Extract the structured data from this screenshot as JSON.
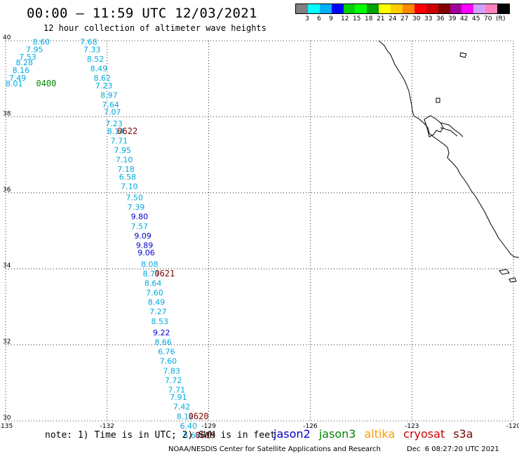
{
  "title": "00:00 – 11:59 UTC 12/03/2021",
  "subtitle": "12 hour collection of altimeter wave heights",
  "colorbar": {
    "colors": [
      "#808080",
      "#00ffff",
      "#00b0ff",
      "#0000ff",
      "#00d000",
      "#00ff00",
      "#00a000",
      "#ffff00",
      "#ffcc00",
      "#ff8800",
      "#ff0000",
      "#cc0000",
      "#800000",
      "#a000a0",
      "#ff00ff",
      "#d0a0ff",
      "#ff80c0",
      "#000000"
    ],
    "labels": [
      "3",
      "6",
      "9",
      "12",
      "15",
      "18",
      "21",
      "24",
      "27",
      "30",
      "33",
      "36",
      "39",
      "42",
      "45",
      "70",
      "(ft)"
    ]
  },
  "chart_data": {
    "type": "scatter",
    "lon_ticks": [
      "-135",
      "-132",
      "-129",
      "-126",
      "-123",
      "-120"
    ],
    "lat_ticks": [
      "30",
      "32",
      "34",
      "36",
      "38",
      "40"
    ],
    "xlim": [
      -135,
      -120
    ],
    "ylim": [
      30,
      40
    ],
    "grid": true,
    "points": [
      {
        "lon": -134.2,
        "lat": 39.9,
        "v": "8.60",
        "c": "#00aadd"
      },
      {
        "lon": -134.4,
        "lat": 39.7,
        "v": "7.95",
        "c": "#00aadd"
      },
      {
        "lon": -134.6,
        "lat": 39.5,
        "v": "7.53",
        "c": "#00aadd"
      },
      {
        "lon": -134.7,
        "lat": 39.35,
        "v": "8.28",
        "c": "#00aadd"
      },
      {
        "lon": -134.8,
        "lat": 39.15,
        "v": "8.16",
        "c": "#00aadd"
      },
      {
        "lon": -134.9,
        "lat": 38.95,
        "v": "7.49",
        "c": "#00aadd"
      },
      {
        "lon": -135.0,
        "lat": 38.8,
        "v": "8.01",
        "c": "#00aadd"
      },
      {
        "lon": -132.8,
        "lat": 39.9,
        "v": "7.68",
        "c": "#00aadd"
      },
      {
        "lon": -132.7,
        "lat": 39.7,
        "v": "7.33",
        "c": "#00aadd"
      },
      {
        "lon": -132.6,
        "lat": 39.45,
        "v": "8.52",
        "c": "#00aadd"
      },
      {
        "lon": -132.5,
        "lat": 39.2,
        "v": "8.49",
        "c": "#00aadd"
      },
      {
        "lon": -132.4,
        "lat": 38.95,
        "v": "8.62",
        "c": "#00aadd"
      },
      {
        "lon": -132.35,
        "lat": 38.75,
        "v": "7.23",
        "c": "#00aadd"
      },
      {
        "lon": -132.2,
        "lat": 38.5,
        "v": "8.97",
        "c": "#00aadd"
      },
      {
        "lon": -132.15,
        "lat": 38.25,
        "v": "7.64",
        "c": "#00aadd"
      },
      {
        "lon": -132.1,
        "lat": 38.05,
        "v": "7.07",
        "c": "#00aadd"
      },
      {
        "lon": -132.05,
        "lat": 37.75,
        "v": "7.23",
        "c": "#00aadd"
      },
      {
        "lon": -132.0,
        "lat": 37.55,
        "v": "8.14",
        "c": "#00aadd"
      },
      {
        "lon": -131.9,
        "lat": 37.3,
        "v": "7.71",
        "c": "#00aadd"
      },
      {
        "lon": -131.8,
        "lat": 37.05,
        "v": "7.95",
        "c": "#00aadd"
      },
      {
        "lon": -131.75,
        "lat": 36.8,
        "v": "7.10",
        "c": "#00aadd"
      },
      {
        "lon": -131.7,
        "lat": 36.55,
        "v": "7.18",
        "c": "#00aadd"
      },
      {
        "lon": -131.65,
        "lat": 36.35,
        "v": "6.58",
        "c": "#00aadd"
      },
      {
        "lon": -131.6,
        "lat": 36.1,
        "v": "7.10",
        "c": "#00aadd"
      },
      {
        "lon": -131.45,
        "lat": 35.8,
        "v": "7.50",
        "c": "#00aadd"
      },
      {
        "lon": -131.4,
        "lat": 35.55,
        "v": "7.39",
        "c": "#00aadd"
      },
      {
        "lon": -131.3,
        "lat": 35.3,
        "v": "9.80",
        "c": "#0000cc"
      },
      {
        "lon": -131.3,
        "lat": 35.05,
        "v": "7.57",
        "c": "#00aadd"
      },
      {
        "lon": -131.2,
        "lat": 34.8,
        "v": "9.09",
        "c": "#0000cc"
      },
      {
        "lon": -131.15,
        "lat": 34.55,
        "v": "9.89",
        "c": "#0000cc"
      },
      {
        "lon": -131.1,
        "lat": 34.35,
        "v": "9.06",
        "c": "#0000cc"
      },
      {
        "lon": -131.0,
        "lat": 34.05,
        "v": "8.08",
        "c": "#00aadd"
      },
      {
        "lon": -130.95,
        "lat": 33.8,
        "v": "8.77",
        "c": "#00aadd"
      },
      {
        "lon": -130.9,
        "lat": 33.55,
        "v": "8.64",
        "c": "#00aadd"
      },
      {
        "lon": -130.85,
        "lat": 33.3,
        "v": "7.60",
        "c": "#00aadd"
      },
      {
        "lon": -130.8,
        "lat": 33.05,
        "v": "8.49",
        "c": "#00aadd"
      },
      {
        "lon": -130.75,
        "lat": 32.8,
        "v": "7.27",
        "c": "#00aadd"
      },
      {
        "lon": -130.7,
        "lat": 32.55,
        "v": "8.53",
        "c": "#00aadd"
      },
      {
        "lon": -130.65,
        "lat": 32.25,
        "v": "9.22",
        "c": "#0000cc"
      },
      {
        "lon": -130.6,
        "lat": 32.0,
        "v": "8.66",
        "c": "#00aadd"
      },
      {
        "lon": -130.5,
        "lat": 31.75,
        "v": "6.76",
        "c": "#00aadd"
      },
      {
        "lon": -130.45,
        "lat": 31.5,
        "v": "7.60",
        "c": "#00aadd"
      },
      {
        "lon": -130.35,
        "lat": 31.25,
        "v": "7.83",
        "c": "#00aadd"
      },
      {
        "lon": -130.3,
        "lat": 31.0,
        "v": "7.72",
        "c": "#00aadd"
      },
      {
        "lon": -130.2,
        "lat": 30.75,
        "v": "7.71",
        "c": "#00aadd"
      },
      {
        "lon": -130.15,
        "lat": 30.55,
        "v": "7.91",
        "c": "#00aadd"
      },
      {
        "lon": -130.05,
        "lat": 30.3,
        "v": "7.42",
        "c": "#00aadd"
      },
      {
        "lon": -129.95,
        "lat": 30.05,
        "v": "8.12",
        "c": "#00aadd"
      },
      {
        "lon": -129.85,
        "lat": 29.8,
        "v": "6.40",
        "c": "#00aadd"
      },
      {
        "lon": -129.75,
        "lat": 29.55,
        "v": "5.67",
        "c": "#00aadd"
      }
    ],
    "time_labels": [
      {
        "lon": -134.1,
        "lat": 38.8,
        "t": "0400",
        "c": "#008800"
      },
      {
        "lon": -131.7,
        "lat": 37.55,
        "t": "0622",
        "c": "#800000"
      },
      {
        "lon": -130.6,
        "lat": 33.8,
        "t": "0621",
        "c": "#800000"
      },
      {
        "lon": -129.6,
        "lat": 30.05,
        "t": "0620",
        "c": "#800000"
      },
      {
        "lon": -129.4,
        "lat": 29.55,
        "t": "0619",
        "c": "#800000"
      }
    ]
  },
  "note": "note: 1) Time is in UTC; 2) SWH is in feet",
  "satellites": [
    {
      "name": "jason2",
      "color": "#0000cc"
    },
    {
      "name": "jason3",
      "color": "#008800"
    },
    {
      "name": "altika",
      "color": "#ff9900"
    },
    {
      "name": "cryosat",
      "color": "#cc0000"
    },
    {
      "name": "s3a",
      "color": "#800000"
    }
  ],
  "credit": "NOAA/NESDIS Center for Satellite Applications and Research",
  "timestamp": "Dec  6 08:27:20 UTC 2021"
}
